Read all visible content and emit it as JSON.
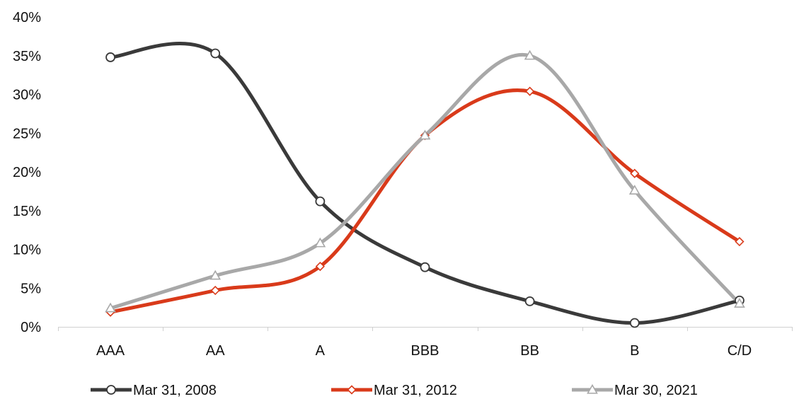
{
  "chart_data": {
    "type": "line",
    "title": "",
    "xlabel": "",
    "ylabel": "",
    "categories": [
      "AAA",
      "AA",
      "A",
      "BBB",
      "BB",
      "B",
      "C/D"
    ],
    "ylim": [
      0,
      40
    ],
    "yticks": [
      0,
      5,
      10,
      15,
      20,
      25,
      30,
      35,
      40
    ],
    "ytick_labels": [
      "0%",
      "5%",
      "10%",
      "15%",
      "20%",
      "25%",
      "30%",
      "35%",
      "40%"
    ],
    "grid": false,
    "legend_position": "bottom",
    "smooth": true,
    "series": [
      {
        "name": "Mar 31, 2008",
        "color": "#3a3a3a",
        "marker": "circle",
        "values": [
          34.8,
          35.3,
          16.2,
          7.7,
          3.3,
          0.5,
          3.4
        ]
      },
      {
        "name": "Mar 31, 2012",
        "color": "#d93a1a",
        "marker": "diamond",
        "values": [
          1.9,
          4.7,
          7.8,
          24.7,
          30.4,
          19.8,
          11.0
        ]
      },
      {
        "name": "Mar 30, 2021",
        "color": "#a8a8a8",
        "marker": "triangle",
        "values": [
          2.4,
          6.6,
          10.8,
          24.7,
          35.0,
          17.6,
          3.0
        ]
      }
    ]
  }
}
